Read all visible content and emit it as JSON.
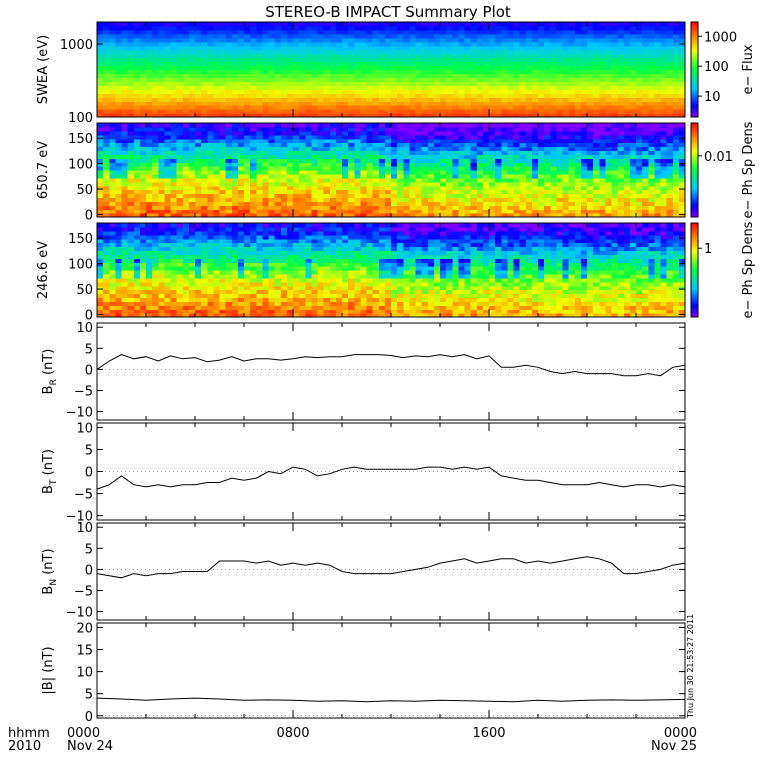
{
  "title": "STEREO-B IMPACT Summary Plot",
  "timestamp": "Thu Jun 30 21:53:27 2011",
  "time_axis": {
    "row1_label": "hhmm",
    "row2_label": "2010",
    "ticks": [
      {
        "hours": 0,
        "time": "0000",
        "date": "Nov 24"
      },
      {
        "hours": 8,
        "time": "0800",
        "date": ""
      },
      {
        "hours": 16,
        "time": "1600",
        "date": ""
      },
      {
        "hours": 24,
        "time": "0000",
        "date": "Nov 25"
      }
    ]
  },
  "chart_data": [
    {
      "type": "heatmap",
      "ylabel": "SWEA (eV)",
      "ylim": [
        100,
        2000
      ],
      "ylog": true,
      "yticks": [
        {
          "v": 100,
          "t": "100"
        },
        {
          "v": 1000,
          "t": "1000"
        }
      ],
      "colorbar": {
        "label": "e− Flux",
        "log": true,
        "range": [
          2,
          3000
        ],
        "ticks": [
          {
            "v": 10,
            "t": "10"
          },
          {
            "v": 100,
            "t": "100"
          },
          {
            "v": 1000,
            "t": "1000"
          }
        ]
      }
    },
    {
      "type": "heatmap",
      "ylabel": "650.7 eV",
      "ylim": [
        -5,
        180
      ],
      "yticks": [
        {
          "v": 0,
          "t": "0"
        },
        {
          "v": 50,
          "t": "50"
        },
        {
          "v": 100,
          "t": "100"
        },
        {
          "v": 150,
          "t": "150"
        }
      ],
      "colorbar": {
        "label": "e− Ph Sp Dens",
        "log": true,
        "range": [
          0.0005,
          0.05
        ],
        "ticks": [
          {
            "v": 0.01,
            "t": "0.01"
          }
        ]
      }
    },
    {
      "type": "heatmap",
      "ylabel": "246.6 eV",
      "ylim": [
        -5,
        180
      ],
      "yticks": [
        {
          "v": 0,
          "t": "0"
        },
        {
          "v": 50,
          "t": "50"
        },
        {
          "v": 100,
          "t": "100"
        },
        {
          "v": 150,
          "t": "150"
        }
      ],
      "colorbar": {
        "label": "e− Ph Sp Dens",
        "log": true,
        "range": [
          0.05,
          3
        ],
        "ticks": [
          {
            "v": 1,
            "t": "1"
          }
        ]
      }
    },
    {
      "type": "line",
      "ylabel_main": "B",
      "ylabel_sub": "R",
      "ylabel_unit": " (nT)",
      "ylim": [
        -12,
        11
      ],
      "yticks": [
        {
          "v": -10,
          "t": "−10"
        },
        {
          "v": -5,
          "t": "−5"
        },
        {
          "v": 0,
          "t": "0"
        },
        {
          "v": 5,
          "t": "5"
        },
        {
          "v": 10,
          "t": "10"
        }
      ],
      "x": [
        0,
        0.5,
        1,
        1.5,
        2,
        2.5,
        3,
        3.5,
        4,
        4.5,
        5,
        5.5,
        6,
        6.5,
        7,
        7.5,
        8,
        8.5,
        9,
        9.5,
        10,
        10.5,
        11,
        11.5,
        12,
        12.5,
        13,
        13.5,
        14,
        14.5,
        15,
        15.5,
        16,
        16.5,
        17,
        17.5,
        18,
        18.5,
        19,
        19.5,
        20,
        20.5,
        21,
        21.5,
        22,
        22.5,
        23,
        23.5,
        24
      ],
      "values": [
        0,
        2,
        3.5,
        2.5,
        3,
        2,
        3.2,
        2.5,
        2.8,
        1.8,
        2.2,
        3,
        2,
        2.5,
        2.5,
        2.2,
        2.5,
        3,
        2.8,
        3,
        3,
        3.5,
        3.5,
        3.5,
        3.3,
        2.8,
        3.2,
        3,
        3.5,
        3,
        3.5,
        2.5,
        3.2,
        0.5,
        0.5,
        1,
        0.5,
        -0.5,
        -1,
        -0.5,
        -1,
        -1,
        -1,
        -1.5,
        -1.5,
        -1,
        -1.5,
        0.5,
        1
      ]
    },
    {
      "type": "line",
      "ylabel_main": "B",
      "ylabel_sub": "T",
      "ylabel_unit": " (nT)",
      "ylim": [
        -11,
        11
      ],
      "yticks": [
        {
          "v": -10,
          "t": "−10"
        },
        {
          "v": -5,
          "t": "−5"
        },
        {
          "v": 0,
          "t": "0"
        },
        {
          "v": 5,
          "t": "5"
        },
        {
          "v": 10,
          "t": "10"
        }
      ],
      "x": [
        0,
        0.5,
        1,
        1.5,
        2,
        2.5,
        3,
        3.5,
        4,
        4.5,
        5,
        5.5,
        6,
        6.5,
        7,
        7.5,
        8,
        8.5,
        9,
        9.5,
        10,
        10.5,
        11,
        11.5,
        12,
        12.5,
        13,
        13.5,
        14,
        14.5,
        15,
        15.5,
        16,
        16.5,
        17,
        17.5,
        18,
        18.5,
        19,
        19.5,
        20,
        20.5,
        21,
        21.5,
        22,
        22.5,
        23,
        23.5,
        24
      ],
      "values": [
        -4,
        -3,
        -1,
        -3,
        -3.5,
        -3,
        -3.5,
        -3,
        -3,
        -2.5,
        -2.5,
        -1.5,
        -2,
        -1.5,
        0,
        -0.5,
        1,
        0.5,
        -1,
        -0.5,
        0.5,
        1,
        0.5,
        0.5,
        0.5,
        0.5,
        0.5,
        1,
        1,
        0.5,
        1,
        0.5,
        1,
        -1,
        -1.5,
        -2,
        -2,
        -2.5,
        -3,
        -3,
        -3,
        -2.5,
        -3,
        -3.5,
        -3,
        -3,
        -3.5,
        -3,
        -3.5
      ]
    },
    {
      "type": "line",
      "ylabel_main": "B",
      "ylabel_sub": "N",
      "ylabel_unit": " (nT)",
      "ylim": [
        -12,
        11
      ],
      "yticks": [
        {
          "v": -10,
          "t": "−10"
        },
        {
          "v": -5,
          "t": "−5"
        },
        {
          "v": 0,
          "t": "0"
        },
        {
          "v": 5,
          "t": "5"
        },
        {
          "v": 10,
          "t": "10"
        }
      ],
      "x": [
        0,
        0.5,
        1,
        1.5,
        2,
        2.5,
        3,
        3.5,
        4,
        4.5,
        5,
        5.5,
        6,
        6.5,
        7,
        7.5,
        8,
        8.5,
        9,
        9.5,
        10,
        10.5,
        11,
        11.5,
        12,
        12.5,
        13,
        13.5,
        14,
        14.5,
        15,
        15.5,
        16,
        16.5,
        17,
        17.5,
        18,
        18.5,
        19,
        19.5,
        20,
        20.5,
        21,
        21.5,
        22,
        22.5,
        23,
        23.5,
        24
      ],
      "values": [
        -1,
        -1.5,
        -2,
        -1,
        -1.5,
        -1,
        -1,
        -0.5,
        -0.5,
        -0.5,
        2,
        2,
        2,
        1.5,
        2,
        1,
        1.5,
        1,
        1.5,
        1,
        -0.5,
        -1,
        -1,
        -1,
        -1,
        -0.5,
        0,
        0.5,
        1.5,
        2,
        2.5,
        1.5,
        2,
        2.5,
        2.5,
        1.5,
        2,
        1.5,
        2,
        2.5,
        3,
        2.5,
        1.5,
        -1,
        -1,
        -0.5,
        0,
        1,
        1.5
      ]
    },
    {
      "type": "line",
      "ylabel_main": "|B|",
      "ylabel_sub": "",
      "ylabel_unit": " (nT)",
      "ylim": [
        -0.5,
        21
      ],
      "yticks": [
        {
          "v": 0,
          "t": "0"
        },
        {
          "v": 5,
          "t": "5"
        },
        {
          "v": 10,
          "t": "10"
        },
        {
          "v": 15,
          "t": "15"
        },
        {
          "v": 20,
          "t": "20"
        }
      ],
      "x": [
        0,
        1,
        2,
        3,
        4,
        5,
        6,
        7,
        8,
        9,
        10,
        11,
        12,
        13,
        14,
        15,
        16,
        17,
        18,
        19,
        20,
        21,
        22,
        23,
        24
      ],
      "values": [
        4,
        3.8,
        3.5,
        3.8,
        4,
        3.8,
        3.5,
        3.6,
        3.5,
        3.3,
        3.4,
        3.2,
        3.4,
        3.3,
        3.5,
        3.4,
        3.3,
        3.2,
        3.5,
        3.3,
        3.5,
        3.6,
        3.5,
        3.6,
        3.7
      ]
    }
  ]
}
